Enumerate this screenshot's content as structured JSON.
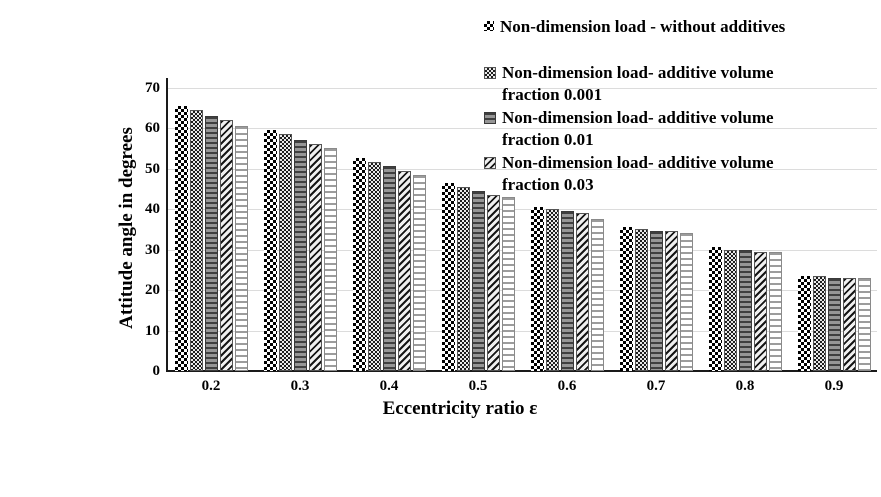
{
  "chart_data": {
    "type": "bar",
    "title": "",
    "xlabel": "Eccentricity ratio ε",
    "ylabel": "Attitude angle in degrees",
    "categories": [
      "0.2",
      "0.3",
      "0.4",
      "0.5",
      "0.6",
      "0.7",
      "0.8",
      "0.9"
    ],
    "yticks": [
      0,
      10,
      20,
      30,
      40,
      50,
      60,
      70
    ],
    "ylim": [
      0,
      70
    ],
    "grid": true,
    "legend_position": "top-right",
    "series": [
      {
        "name": "Non-dimension load - without additives",
        "pattern": "checkerboard",
        "values": [
          65.5,
          59.5,
          52.5,
          46.5,
          40.5,
          35.5,
          30.5,
          23.5
        ]
      },
      {
        "name": "Non-dimension load- additive volume fraction 0.001",
        "pattern": "fine-check",
        "values": [
          64.5,
          58.5,
          51.5,
          45.5,
          40,
          35,
          30,
          23.5
        ]
      },
      {
        "name": "Non-dimension load- additive volume fraction 0.01",
        "pattern": "horizontal-lines-dark",
        "values": [
          63,
          57,
          50.5,
          44.5,
          39.5,
          34.5,
          30,
          23
        ]
      },
      {
        "name": "Non-dimension load- additive volume fraction 0.03",
        "pattern": "diagonal-hatch",
        "values": [
          62,
          56,
          49.5,
          43.5,
          39,
          34.5,
          29.5,
          23
        ]
      },
      {
        "name": "",
        "pattern": "horizontal-lines-light",
        "legend_visible": false,
        "values": [
          60.5,
          55,
          48.5,
          43,
          37.5,
          34,
          29.5,
          23
        ]
      }
    ]
  },
  "legend": {
    "entries": [
      {
        "pattern": "checkerboard",
        "lines": [
          "Non-dimension load - without additives"
        ]
      },
      {
        "pattern": "fine-check",
        "lines": [
          "Non-dimension load- additive volume",
          "fraction 0.001"
        ]
      },
      {
        "pattern": "horizontal-lines-dark",
        "lines": [
          "Non-dimension load- additive volume",
          "fraction 0.01"
        ]
      },
      {
        "pattern": "diagonal-hatch",
        "lines": [
          "Non-dimension load- additive volume",
          "fraction 0.03"
        ]
      }
    ]
  },
  "colors": {
    "axis": "#1a1a1a",
    "gridline": "#dcdcdc",
    "text": "#000000",
    "background": "#ffffff"
  }
}
